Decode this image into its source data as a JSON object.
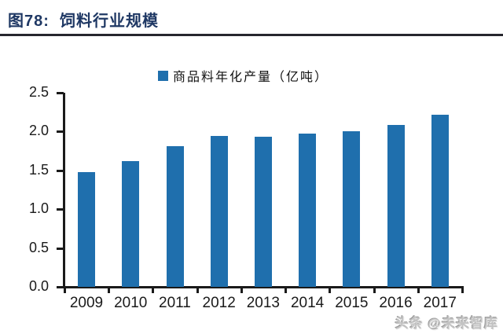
{
  "header": {
    "title": "图78:  饲料行业规模",
    "title_color": "#1f3864",
    "rule_color": "#26262e"
  },
  "chart_data": {
    "type": "bar",
    "title": "饲料行业规模",
    "legend": "商品料年化产量（亿吨）",
    "legend_position": "top-center",
    "categories": [
      "2009",
      "2010",
      "2011",
      "2012",
      "2013",
      "2014",
      "2015",
      "2016",
      "2017"
    ],
    "values": [
      1.48,
      1.62,
      1.81,
      1.94,
      1.93,
      1.97,
      2.0,
      2.09,
      2.22
    ],
    "xlabel": "",
    "ylabel": "",
    "ylim": [
      0,
      2.5
    ],
    "yticks": [
      0.0,
      0.5,
      1.0,
      1.5,
      2.0,
      2.5
    ],
    "ytick_labels": [
      "0.0",
      "0.5",
      "1.0",
      "1.5",
      "2.0",
      "2.5"
    ],
    "bar_color": "#1f6fad",
    "axis_color": "#1a1a1a",
    "grid": false
  },
  "footer": {
    "watermark": "头条 @未来智库"
  }
}
